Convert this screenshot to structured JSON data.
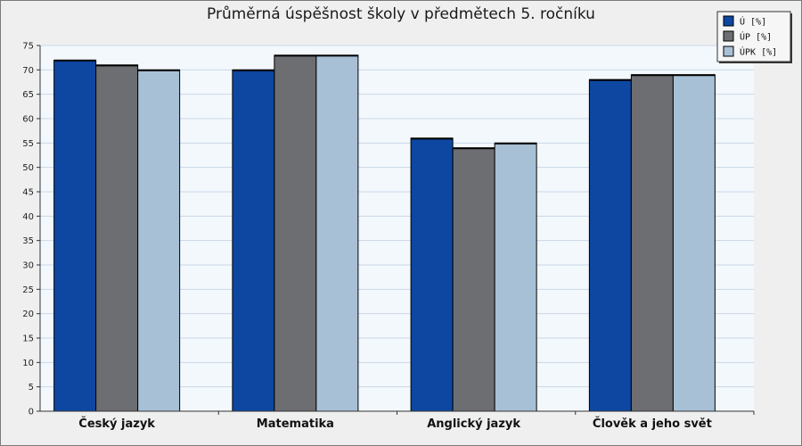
{
  "chart_data": {
    "type": "bar",
    "title": "Průměrná úspěšnost školy v předmětech 5. ročníku",
    "categories": [
      "Český jazyk",
      "Matematika",
      "Anglický jazyk",
      "Člověk a jeho svět"
    ],
    "series": [
      {
        "name": "Ú [%]",
        "values": [
          72,
          70,
          56,
          68
        ],
        "color": "#0d47a1"
      },
      {
        "name": "ÚP [%]",
        "values": [
          71,
          73,
          54,
          69
        ],
        "color": "#6d6e71"
      },
      {
        "name": "ÚPK [%]",
        "values": [
          70,
          73,
          55,
          69
        ],
        "color": "#a8c0d6"
      }
    ],
    "ylim": [
      0,
      75
    ],
    "yticks": [
      0,
      5,
      10,
      15,
      20,
      25,
      30,
      35,
      40,
      45,
      50,
      55,
      60,
      65,
      70,
      75
    ],
    "grid": true,
    "legend_position": "top-right",
    "plot_background": "#f3f8fd",
    "grid_color": "#c9d7e6"
  }
}
